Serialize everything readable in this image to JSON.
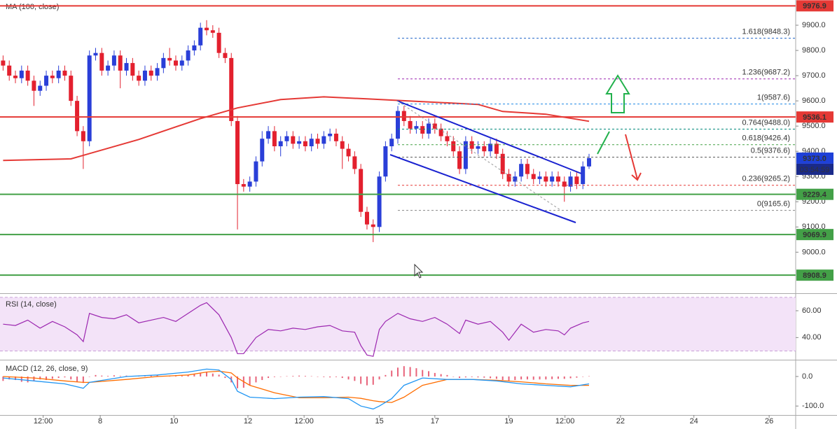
{
  "chart_data": [
    {
      "type": "candlestick",
      "title": "MA (100, close)",
      "xlim": [
        -0.5,
        128.5
      ],
      "xticks": [
        {
          "value": 6.5,
          "label": "12:00"
        },
        {
          "value": 15.75,
          "label": "8"
        },
        {
          "value": 27.7,
          "label": "10"
        },
        {
          "value": 39.7,
          "label": "12"
        },
        {
          "value": 48.8,
          "label": "12:00"
        },
        {
          "value": 61,
          "label": "15"
        },
        {
          "value": 70,
          "label": "17"
        },
        {
          "value": 82,
          "label": "19"
        },
        {
          "value": 91.1,
          "label": "12:00"
        },
        {
          "value": 100.1,
          "label": "22"
        },
        {
          "value": 112,
          "label": "24"
        },
        {
          "value": 124.2,
          "label": "26"
        }
      ],
      "ylim": [
        8840,
        10000
      ],
      "yticks": [
        {
          "value": 9900,
          "label": "9900.0"
        },
        {
          "value": 9800,
          "label": "9800.0"
        },
        {
          "value": 9700,
          "label": "9700.0"
        },
        {
          "value": 9600,
          "label": "9600.0"
        },
        {
          "value": 9500,
          "label": "9500.0"
        },
        {
          "value": 9400,
          "label": "9400.0"
        },
        {
          "value": 9300,
          "label": "9300.0"
        },
        {
          "value": 9200,
          "label": "9200.0"
        },
        {
          "value": 9100,
          "label": "9100.0"
        },
        {
          "value": 9000,
          "label": "9000.0"
        }
      ],
      "up_color": "#2a3fd8",
      "down_color": "#e3202e",
      "open": [
        9760,
        9740,
        9700,
        9690,
        9720,
        9680,
        9640,
        9660,
        9700,
        9690,
        9720,
        9700,
        9600,
        9480,
        9440,
        9780,
        9790,
        9720,
        9740,
        9780,
        9720,
        9750,
        9700,
        9680,
        9720,
        9700,
        9730,
        9770,
        9760,
        9740,
        9760,
        9800,
        9820,
        9890,
        9880,
        9870,
        9790,
        9770,
        9520,
        9270,
        9260,
        9280,
        9360,
        9450,
        9480,
        9420,
        9440,
        9460,
        9430,
        9440,
        9420,
        9450,
        9430,
        9460,
        9470,
        9440,
        9410,
        9380,
        9330,
        9160,
        9110,
        9100,
        9300,
        9420,
        9450,
        9560,
        9520,
        9490,
        9500,
        9470,
        9510,
        9490,
        9460,
        9440,
        9400,
        9330,
        9440,
        9410,
        9420,
        9400,
        9430,
        9390,
        9310,
        9280,
        9300,
        9350,
        9310,
        9290,
        9300,
        9280,
        9300,
        9280,
        9260,
        9300,
        9270,
        9340
      ],
      "high": [
        9780,
        9760,
        9720,
        9740,
        9740,
        9700,
        9680,
        9720,
        9720,
        9740,
        9740,
        9720,
        9620,
        9500,
        9800,
        9810,
        9810,
        9760,
        9800,
        9800,
        9770,
        9770,
        9720,
        9740,
        9740,
        9750,
        9790,
        9810,
        9780,
        9780,
        9820,
        9840,
        9910,
        9920,
        9900,
        9890,
        9810,
        9790,
        9540,
        9290,
        9300,
        9380,
        9480,
        9500,
        9500,
        9460,
        9480,
        9480,
        9460,
        9460,
        9470,
        9470,
        9480,
        9490,
        9490,
        9460,
        9430,
        9400,
        9350,
        9180,
        9130,
        9320,
        9440,
        9470,
        9580,
        9580,
        9540,
        9520,
        9520,
        9530,
        9530,
        9510,
        9480,
        9460,
        9420,
        9460,
        9460,
        9440,
        9440,
        9450,
        9450,
        9410,
        9330,
        9320,
        9370,
        9370,
        9330,
        9320,
        9320,
        9320,
        9320,
        9300,
        9320,
        9320,
        9360,
        9390
      ],
      "low": [
        9720,
        9680,
        9670,
        9670,
        9660,
        9580,
        9620,
        9640,
        9670,
        9670,
        9680,
        9580,
        9460,
        9330,
        9420,
        9760,
        9700,
        9700,
        9720,
        9650,
        9700,
        9680,
        9660,
        9660,
        9680,
        9680,
        9710,
        9740,
        9720,
        9720,
        9740,
        9780,
        9800,
        9860,
        9850,
        9770,
        9750,
        9500,
        9090,
        9240,
        9240,
        9260,
        9340,
        9430,
        9400,
        9380,
        9420,
        9410,
        9410,
        9400,
        9400,
        9410,
        9410,
        9440,
        9420,
        9330,
        9360,
        9310,
        9140,
        9090,
        9040,
        9080,
        9280,
        9400,
        9430,
        9500,
        9470,
        9470,
        9450,
        9450,
        9470,
        9440,
        9420,
        9380,
        9310,
        9310,
        9390,
        9390,
        9380,
        9380,
        9370,
        9290,
        9260,
        9260,
        9280,
        9290,
        9270,
        9270,
        9260,
        9260,
        9260,
        9200,
        9240,
        9250,
        9250,
        9330
      ],
      "close": [
        9740,
        9700,
        9690,
        9720,
        9680,
        9640,
        9660,
        9700,
        9690,
        9720,
        9700,
        9600,
        9480,
        9440,
        9780,
        9790,
        9720,
        9740,
        9780,
        9720,
        9750,
        9700,
        9680,
        9720,
        9700,
        9730,
        9770,
        9760,
        9740,
        9760,
        9800,
        9820,
        9890,
        9880,
        9870,
        9790,
        9770,
        9520,
        9270,
        9260,
        9280,
        9360,
        9450,
        9480,
        9420,
        9440,
        9460,
        9430,
        9440,
        9420,
        9450,
        9430,
        9460,
        9470,
        9440,
        9410,
        9380,
        9330,
        9160,
        9110,
        9100,
        9300,
        9420,
        9450,
        9560,
        9520,
        9490,
        9500,
        9470,
        9510,
        9490,
        9460,
        9440,
        9400,
        9330,
        9440,
        9410,
        9420,
        9400,
        9430,
        9390,
        9310,
        9280,
        9300,
        9350,
        9310,
        9290,
        9300,
        9280,
        9300,
        9280,
        9260,
        9300,
        9270,
        9340,
        9373
      ],
      "ma": {
        "color": "#e53935",
        "x": [
          0,
          11,
          22,
          32,
          38,
          45,
          52,
          59,
          68,
          77,
          81,
          88,
          95
        ],
        "values": [
          9364,
          9370,
          9447,
          9530,
          9572,
          9605,
          9616,
          9608,
          9597,
          9586,
          9558,
          9547,
          9519
        ]
      },
      "levels": [
        {
          "value": 9976.9,
          "color": "#e53935"
        },
        {
          "value": 9536.1,
          "color": "#e53935"
        },
        {
          "value": 9229.4,
          "color": "#43a047"
        },
        {
          "value": 9069.9,
          "color": "#43a047"
        },
        {
          "value": 8908.9,
          "color": "#43a047"
        }
      ],
      "fib": [
        {
          "value": 9848.3,
          "label": "1.618(9848.3)",
          "color": "#1e63c8"
        },
        {
          "value": 9687.2,
          "label": "1.236(9687.2)",
          "color": "#9c27b0"
        },
        {
          "value": 9587.6,
          "label": "1(9587.6)",
          "color": "#1e88e5"
        },
        {
          "value": 9488.0,
          "label": "0.764(9488.0)",
          "color": "#00897b"
        },
        {
          "value": 9426.4,
          "label": "0.618(9426.4)",
          "color": "#43a047"
        },
        {
          "value": 9376.6,
          "label": "0.5(9376.6)",
          "color": "#555555"
        },
        {
          "value": 9265.2,
          "label": "0.236(9265.2)",
          "color": "#e53935"
        },
        {
          "value": 9165.6,
          "label": "0(9165.6)",
          "color": "#888888"
        }
      ],
      "last": {
        "value": 9373,
        "label": "9373.0",
        "countdown": "03:54:59",
        "color": "#1e40d8"
      }
    },
    {
      "type": "line",
      "title": "RSI (14, close)",
      "color": "#9c27b0",
      "ylim": [
        24,
        72
      ],
      "yticks": [
        {
          "value": 60,
          "label": "60.00"
        },
        {
          "value": 40,
          "label": "40.00"
        }
      ],
      "band": [
        30,
        70
      ],
      "band_color": "#f3e3f8",
      "x": [
        0,
        2,
        4,
        6,
        8,
        10,
        12,
        13,
        14,
        16,
        18,
        20,
        22,
        24,
        26,
        28,
        30,
        32,
        33,
        35,
        37,
        38,
        39,
        41,
        43,
        45,
        47,
        49,
        51,
        53,
        55,
        57,
        58,
        59,
        60,
        61,
        62,
        64,
        66,
        68,
        70,
        72,
        74,
        75,
        77,
        79,
        81,
        82,
        84,
        86,
        88,
        90,
        91,
        92,
        94,
        95
      ],
      "values": [
        50,
        49,
        53,
        47,
        52,
        48,
        42,
        37,
        58,
        55,
        54,
        57,
        51,
        53,
        55,
        52,
        58,
        64,
        66,
        57,
        40,
        28,
        28,
        40,
        46,
        45,
        47,
        46,
        48,
        49,
        45,
        44,
        34,
        27,
        26,
        46,
        52,
        58,
        54,
        52,
        55,
        50,
        43,
        53,
        50,
        52,
        44,
        38,
        50,
        44,
        46,
        45,
        42,
        47,
        51,
        52
      ]
    },
    {
      "type": "macd",
      "title": "MACD (12, 26, close, 9)",
      "ylim": [
        -128,
        52
      ],
      "yticks": [
        {
          "value": 0,
          "label": "0.0"
        },
        {
          "value": -100,
          "label": "-100.0"
        }
      ],
      "hist_color": "#e8637a",
      "histogram": [
        -15,
        -10,
        -12,
        -18,
        -20,
        -15,
        -10,
        -12,
        -8,
        -5,
        -3,
        -10,
        -18,
        -22,
        0,
        5,
        3,
        2,
        4,
        2,
        3,
        1,
        2,
        1,
        3,
        4,
        2,
        1,
        2,
        3,
        5,
        8,
        12,
        14,
        10,
        6,
        -5,
        -20,
        -40,
        -38,
        -30,
        -20,
        -12,
        -5,
        -2,
        0,
        1,
        2,
        3,
        2,
        1,
        0,
        -2,
        -3,
        -2,
        -5,
        -10,
        -15,
        -25,
        -30,
        -28,
        -10,
        5,
        20,
        30,
        35,
        32,
        28,
        22,
        18,
        12,
        8,
        5,
        0,
        -5,
        -3,
        -2,
        -3,
        -4,
        -6,
        -8,
        -12,
        -14,
        -12,
        -10,
        -10,
        -11,
        -10,
        -10,
        -9,
        -8,
        -8,
        -6,
        -4,
        -1,
        1
      ],
      "macd": {
        "color": "#2196f3",
        "x": [
          0,
          5,
          10,
          13,
          14,
          20,
          25,
          30,
          33,
          35,
          37,
          38,
          40,
          44,
          48,
          52,
          56,
          58,
          60,
          61,
          63,
          65,
          68,
          72,
          76,
          80,
          84,
          88,
          92,
          95
        ],
        "values": [
          -5,
          -15,
          -25,
          -40,
          -20,
          0,
          5,
          15,
          25,
          22,
          -10,
          -50,
          -70,
          -75,
          -70,
          -68,
          -75,
          -100,
          -110,
          -100,
          -75,
          -30,
          -5,
          -10,
          -10,
          -15,
          -25,
          -30,
          -35,
          -25
        ]
      },
      "signal": {
        "color": "#ff6d00",
        "x": [
          0,
          5,
          10,
          13,
          14,
          20,
          25,
          30,
          33,
          35,
          37,
          38,
          40,
          44,
          48,
          52,
          56,
          58,
          60,
          61,
          63,
          65,
          68,
          72,
          76,
          80,
          84,
          88,
          92,
          95
        ],
        "values": [
          0,
          -5,
          -15,
          -20,
          -20,
          -10,
          0,
          5,
          15,
          18,
          12,
          -5,
          -30,
          -55,
          -72,
          -72,
          -70,
          -74,
          -82,
          -85,
          -88,
          -70,
          -30,
          -10,
          -10,
          -13,
          -18,
          -25,
          -30,
          -30
        ]
      }
    }
  ]
}
